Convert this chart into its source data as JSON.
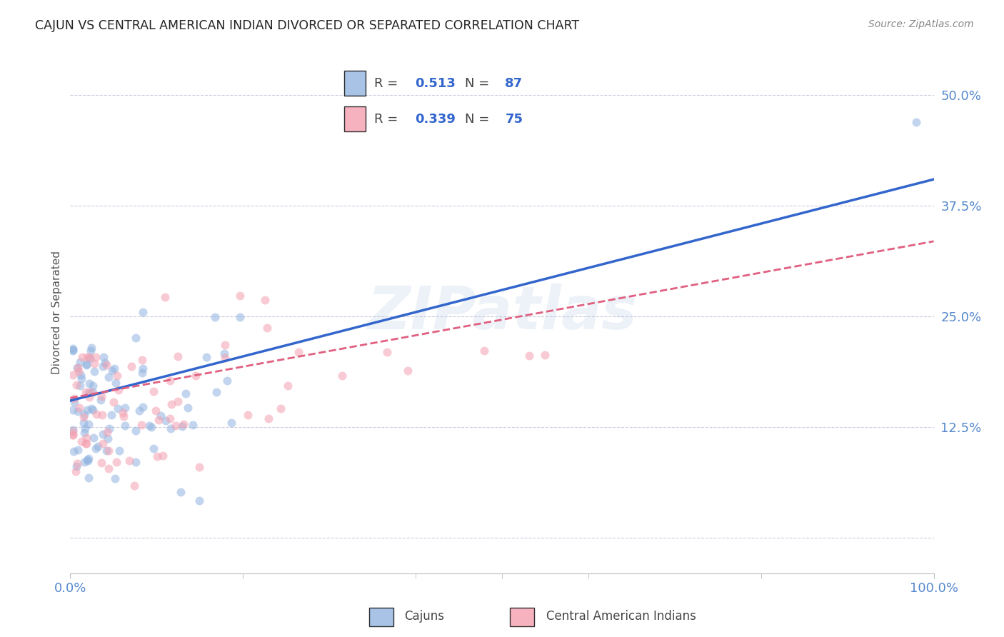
{
  "title": "CAJUN VS CENTRAL AMERICAN INDIAN DIVORCED OR SEPARATED CORRELATION CHART",
  "source": "Source: ZipAtlas.com",
  "ylabel": "Divorced or Separated",
  "watermark": "ZIPatlas",
  "blue_color": "#92B4E0",
  "pink_color": "#F4A0B0",
  "trendline_blue_color": "#3366CC",
  "trendline_pink_color": "#E06080",
  "axis_color": "#5588CC",
  "title_color": "#222222",
  "source_color": "#888888",
  "ylabel_color": "#555555",
  "xlim": [
    0.0,
    1.0
  ],
  "ylim": [
    -0.04,
    0.55
  ],
  "yticks": [
    0.0,
    0.125,
    0.25,
    0.375,
    0.5
  ],
  "ytick_labels": [
    "",
    "12.5%",
    "25.0%",
    "37.5%",
    "50.0%"
  ],
  "xtick_labels": [
    "0.0%",
    "100.0%"
  ],
  "blue_trend_x0": 0.0,
  "blue_trend_x1": 1.0,
  "blue_trend_y0": 0.155,
  "blue_trend_y1": 0.405,
  "pink_trend_x0": 0.0,
  "pink_trend_x1": 1.0,
  "pink_trend_y0": 0.158,
  "pink_trend_y1": 0.335,
  "marker_size": 75,
  "alpha": 0.55,
  "grid_color": "#CCCCDD",
  "background_color": "#FFFFFF",
  "legend_blue_r": "0.513",
  "legend_blue_n": "87",
  "legend_pink_r": "0.339",
  "legend_pink_n": "75"
}
